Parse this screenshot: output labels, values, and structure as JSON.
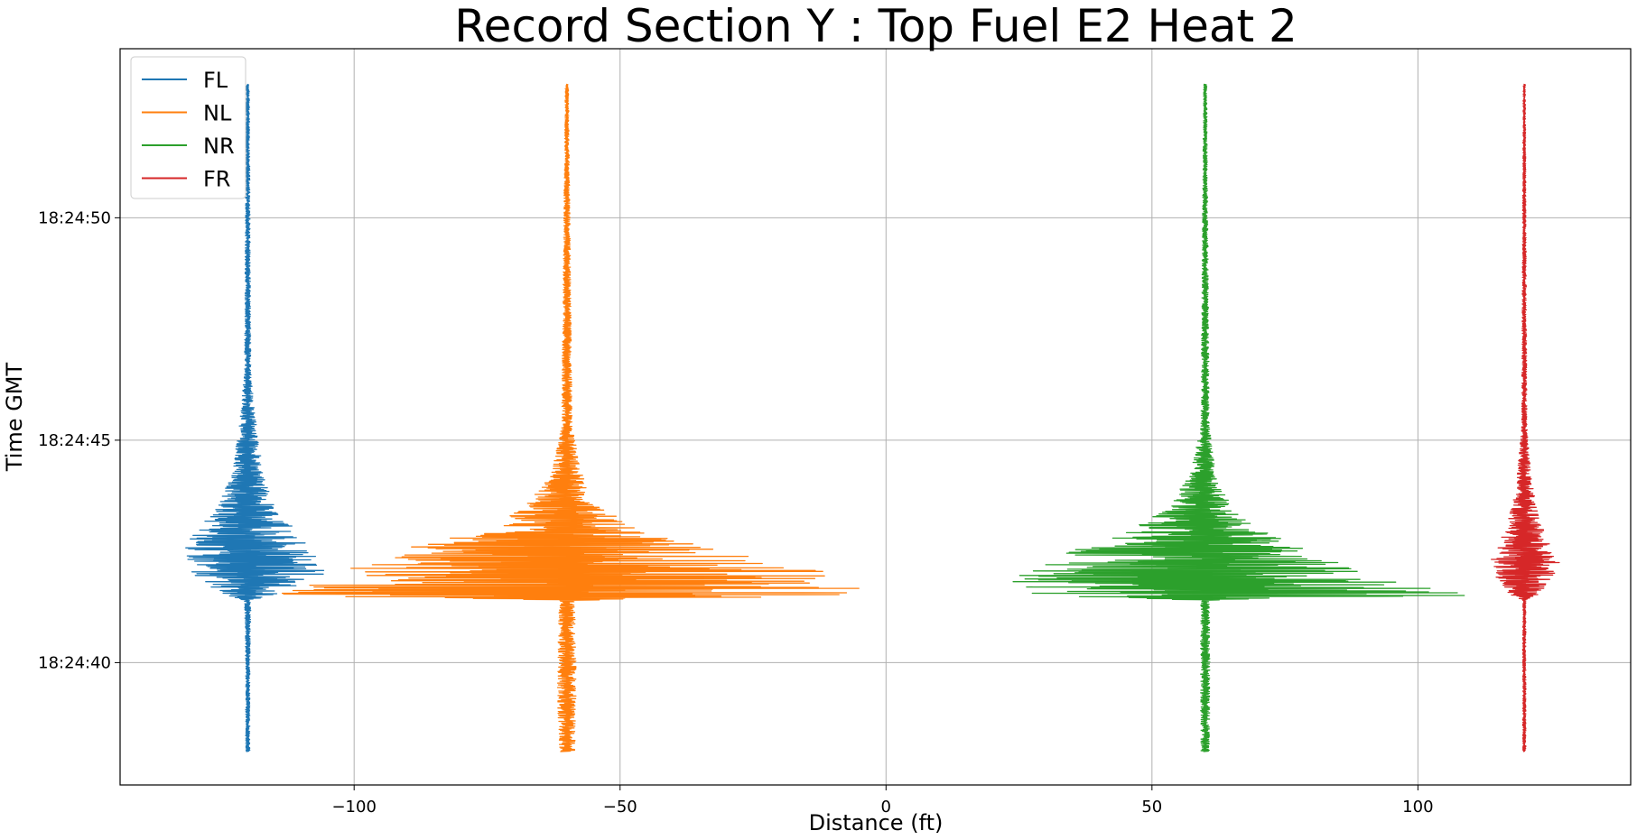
{
  "chart_data": {
    "type": "line",
    "title": "Record Section Y : Top Fuel E2 Heat 2",
    "xlabel": "Distance (ft)",
    "ylabel": "Time GMT",
    "xlim": [
      -144,
      140
    ],
    "ylim": [
      "18:24:37.25",
      "18:24:53.8"
    ],
    "grid": true,
    "legend_position": "top-left",
    "x_ticks": [
      -100,
      -50,
      0,
      50,
      100
    ],
    "x_tick_labels": [
      "−100",
      "−50",
      "0",
      "50",
      "100"
    ],
    "y_ticks": [
      "18:24:40",
      "18:24:45",
      "18:24:50"
    ],
    "y_tick_labels": [
      "18:24:40",
      "18:24:45",
      "18:24:50"
    ],
    "time_range": [
      "18:24:38",
      "18:24:53"
    ],
    "series": [
      {
        "name": "FL",
        "color": "#1f77b4",
        "baseline_x": -120,
        "envelope": [
          {
            "t": "18:24:38",
            "left": 0.4,
            "right": 0.4
          },
          {
            "t": "18:24:40",
            "left": 0.4,
            "right": 0.4
          },
          {
            "t": "18:24:41.4",
            "left": 0.6,
            "right": 0.6
          },
          {
            "t": "18:24:41.55",
            "left": 6,
            "right": 6
          },
          {
            "t": "18:24:42",
            "left": 11,
            "right": 15
          },
          {
            "t": "18:24:42.6",
            "left": 12,
            "right": 12
          },
          {
            "t": "18:24:43",
            "left": 10,
            "right": 9
          },
          {
            "t": "18:24:43.5",
            "left": 6,
            "right": 5
          },
          {
            "t": "18:24:44.2",
            "left": 3,
            "right": 3
          },
          {
            "t": "18:24:45.5",
            "left": 1.5,
            "right": 1.5
          },
          {
            "t": "18:24:46.5",
            "left": 0.6,
            "right": 0.6
          },
          {
            "t": "18:24:53",
            "left": 0.3,
            "right": 0.3
          }
        ]
      },
      {
        "name": "NL",
        "color": "#ff7f0e",
        "baseline_x": -60,
        "envelope": [
          {
            "t": "18:24:38",
            "left": 1.5,
            "right": 1.5
          },
          {
            "t": "18:24:39.5",
            "left": 1.8,
            "right": 1.8
          },
          {
            "t": "18:24:41.4",
            "left": 1.5,
            "right": 1.5
          },
          {
            "t": "18:24:41.5",
            "left": 60,
            "right": 55
          },
          {
            "t": "18:24:41.9",
            "left": 48,
            "right": 57
          },
          {
            "t": "18:24:42.2",
            "left": 38,
            "right": 40
          },
          {
            "t": "18:24:42.6",
            "left": 30,
            "right": 28
          },
          {
            "t": "18:24:43",
            "left": 18,
            "right": 14
          },
          {
            "t": "18:24:43.5",
            "left": 8,
            "right": 6
          },
          {
            "t": "18:24:44.2",
            "left": 3,
            "right": 3
          },
          {
            "t": "18:24:45.3",
            "left": 1,
            "right": 1
          },
          {
            "t": "18:24:53",
            "left": 0.3,
            "right": 0.3
          }
        ]
      },
      {
        "name": "NR",
        "color": "#2ca02c",
        "baseline_x": 60,
        "envelope": [
          {
            "t": "18:24:38",
            "left": 0.8,
            "right": 0.8
          },
          {
            "t": "18:24:40",
            "left": 0.9,
            "right": 0.9
          },
          {
            "t": "18:24:41.4",
            "left": 0.8,
            "right": 0.8
          },
          {
            "t": "18:24:41.5",
            "left": 34,
            "right": 52
          },
          {
            "t": "18:24:41.9",
            "left": 38,
            "right": 32
          },
          {
            "t": "18:24:42.2",
            "left": 30,
            "right": 26
          },
          {
            "t": "18:24:42.6",
            "left": 24,
            "right": 18
          },
          {
            "t": "18:24:43",
            "left": 14,
            "right": 10
          },
          {
            "t": "18:24:43.5",
            "left": 7,
            "right": 5
          },
          {
            "t": "18:24:44.2",
            "left": 3,
            "right": 2
          },
          {
            "t": "18:24:45.3",
            "left": 0.8,
            "right": 0.8
          },
          {
            "t": "18:24:53",
            "left": 0.3,
            "right": 0.3
          }
        ]
      },
      {
        "name": "FR",
        "color": "#d62728",
        "baseline_x": 120,
        "envelope": [
          {
            "t": "18:24:38",
            "left": 0.3,
            "right": 0.3
          },
          {
            "t": "18:24:41.4",
            "left": 0.3,
            "right": 0.3
          },
          {
            "t": "18:24:41.55",
            "left": 3,
            "right": 3
          },
          {
            "t": "18:24:42.2",
            "left": 7,
            "right": 7
          },
          {
            "t": "18:24:42.6",
            "left": 5,
            "right": 5
          },
          {
            "t": "18:24:43.2",
            "left": 3,
            "right": 3
          },
          {
            "t": "18:24:44",
            "left": 1.5,
            "right": 1.5
          },
          {
            "t": "18:24:45.3",
            "left": 0.5,
            "right": 0.5
          },
          {
            "t": "18:24:53",
            "left": 0.2,
            "right": 0.2
          }
        ]
      }
    ]
  }
}
